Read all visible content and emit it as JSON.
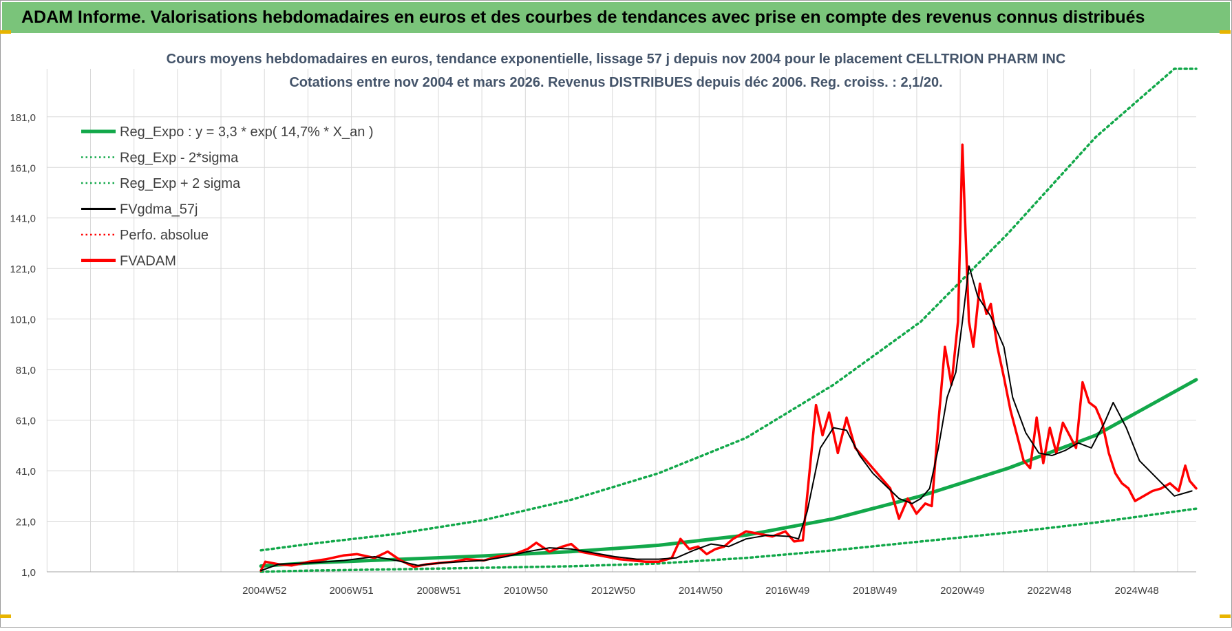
{
  "banner": {
    "title": "ADAM Informe. Valorisations hebdomadaires en euros et des courbes de tendances avec prise en compte des revenus connus distribués"
  },
  "colors": {
    "banner_bg": "#7ac47a",
    "trend": "#12a84a",
    "fvgdma": "#000000",
    "fvadam": "#ff0000",
    "title_text": "#44546a",
    "grid": "#d9d9d9"
  },
  "chart_data": {
    "type": "line",
    "title": "Cours moyens hebdomadaires en euros, tendance exponentielle, lissage 57 j depuis nov 2004  pour le placement CELLTRION PHARM INC",
    "subtitle": "Cotations entre nov 2004 et mars 2026. Revenus DISTRIBUES depuis déc 2006.  Reg. croiss. : 2,1/20.",
    "xlabel": "",
    "ylabel": "",
    "ylim": [
      1.0,
      200.0
    ],
    "xlim": [
      2000.0,
      2026.3
    ],
    "grid": true,
    "legend_position": "top-left",
    "y_ticks": [
      1.0,
      21.0,
      41.0,
      61.0,
      81.0,
      101.0,
      121.0,
      141.0,
      161.0,
      181.0
    ],
    "y_tick_labels": [
      "1,0",
      "21,0",
      "41,0",
      "61,0",
      "81,0",
      "101,0",
      "121,0",
      "141,0",
      "161,0",
      "181,0"
    ],
    "x_ticks": [
      2004.98,
      2006.97,
      2008.97,
      2010.96,
      2012.96,
      2014.96,
      2016.95,
      2018.95,
      2020.95,
      2022.94,
      2024.94
    ],
    "x_tick_labels": [
      "2004W52",
      "2006W51",
      "2008W51",
      "2010W50",
      "2012W50",
      "2014W50",
      "2016W49",
      "2018W49",
      "2020W49",
      "2022W48",
      "2024W48"
    ],
    "legend": [
      {
        "name": "Reg_Expo : y = 3,3 * exp( 14,7% *  X_an )",
        "style": "solid-thick",
        "color": "#12a84a"
      },
      {
        "name": "Reg_Exp - 2*sigma",
        "style": "dotted",
        "color": "#12a84a"
      },
      {
        "name": "Reg_Exp + 2 sigma",
        "style": "dotted",
        "color": "#12a84a"
      },
      {
        "name": "FVgdma_57j",
        "style": "solid",
        "color": "#000000"
      },
      {
        "name": "Perfo. absolue",
        "style": "dotted",
        "color": "#ff0000"
      },
      {
        "name": "FVADAM",
        "style": "solid-thick",
        "color": "#ff0000"
      }
    ],
    "series": [
      {
        "name": "Reg_Expo : y = 3,3 * exp( 14,7% *  X_an )",
        "x": [
          2004.9,
          2006,
          2008,
          2010,
          2012,
          2014,
          2016,
          2018,
          2020,
          2022,
          2024,
          2026.3
        ],
        "y": [
          3.3,
          4.5,
          5.9,
          7.3,
          9.0,
          11.5,
          15.5,
          22.0,
          31.0,
          42.0,
          55.0,
          77.0
        ]
      },
      {
        "name": "Reg_Exp - 2*sigma",
        "x": [
          2004.9,
          2006,
          2008,
          2010,
          2012,
          2014,
          2016,
          2018,
          2020,
          2022,
          2024,
          2026.3
        ],
        "y": [
          1.0,
          1.5,
          2.0,
          2.6,
          3.2,
          4.3,
          6.5,
          9.5,
          13.0,
          16.5,
          20.5,
          26.0
        ]
      },
      {
        "name": "Reg_Exp + 2 sigma",
        "x": [
          2004.9,
          2006,
          2008,
          2010,
          2012,
          2014,
          2016,
          2018,
          2020,
          2022,
          2024,
          2025.8,
          2026.3
        ],
        "y": [
          9.5,
          12.0,
          16.0,
          21.5,
          29.5,
          40.0,
          54.0,
          75.0,
          100.0,
          135.0,
          173.0,
          200.0,
          200.0
        ]
      },
      {
        "name": "FVgdma_57j",
        "x": [
          2004.9,
          2005.3,
          2006.0,
          2006.8,
          2007.5,
          2008.0,
          2008.5,
          2009.0,
          2009.5,
          2010.0,
          2010.5,
          2011.0,
          2011.5,
          2012.0,
          2012.5,
          2013.0,
          2013.5,
          2014.0,
          2014.4,
          2014.8,
          2015.2,
          2015.6,
          2016.0,
          2016.5,
          2017.0,
          2017.2,
          2017.4,
          2017.7,
          2018.0,
          2018.3,
          2018.6,
          2018.9,
          2019.2,
          2019.5,
          2019.8,
          2020.0,
          2020.2,
          2020.4,
          2020.6,
          2020.8,
          2020.95,
          2021.1,
          2021.3,
          2021.6,
          2021.9,
          2022.1,
          2022.4,
          2022.7,
          2023.0,
          2023.3,
          2023.6,
          2023.9,
          2024.2,
          2024.4,
          2024.7,
          2025.0,
          2025.4,
          2025.8,
          2026.2
        ],
        "y": [
          1.5,
          4.0,
          4.5,
          5.5,
          7.0,
          5.5,
          3.5,
          4.5,
          5.0,
          5.5,
          7.0,
          9.0,
          10.5,
          10.0,
          8.5,
          7.0,
          6.0,
          6.0,
          6.5,
          9.5,
          12.0,
          11.0,
          14.0,
          15.5,
          15.0,
          14.0,
          25.0,
          50.0,
          58.0,
          57.0,
          47.0,
          40.0,
          35.0,
          30.0,
          28.0,
          30.0,
          34.0,
          50.0,
          70.0,
          80.0,
          100.0,
          122.0,
          110.0,
          102.0,
          90.0,
          70.0,
          56.0,
          48.0,
          47.0,
          49.0,
          52.0,
          50.0,
          60.0,
          68.0,
          58.0,
          45.0,
          38.0,
          31.0,
          33.0
        ]
      },
      {
        "name": "FVADAM",
        "x": [
          2004.9,
          2005.0,
          2005.3,
          2005.6,
          2006.0,
          2006.4,
          2006.8,
          2007.1,
          2007.5,
          2007.8,
          2008.1,
          2008.4,
          2008.7,
          2009.0,
          2009.3,
          2009.6,
          2010.0,
          2010.3,
          2010.7,
          2011.0,
          2011.2,
          2011.5,
          2011.8,
          2012.0,
          2012.2,
          2012.5,
          2012.8,
          2013.1,
          2013.4,
          2013.7,
          2014.0,
          2014.3,
          2014.5,
          2014.7,
          2014.9,
          2015.1,
          2015.3,
          2015.5,
          2015.7,
          2016.0,
          2016.3,
          2016.6,
          2016.9,
          2017.1,
          2017.3,
          2017.45,
          2017.6,
          2017.75,
          2017.9,
          2018.1,
          2018.3,
          2018.5,
          2018.7,
          2018.9,
          2019.1,
          2019.3,
          2019.5,
          2019.7,
          2019.9,
          2020.1,
          2020.25,
          2020.4,
          2020.55,
          2020.7,
          2020.85,
          2020.95,
          2021.0,
          2021.1,
          2021.2,
          2021.35,
          2021.5,
          2021.6,
          2021.75,
          2021.9,
          2022.05,
          2022.2,
          2022.35,
          2022.5,
          2022.65,
          2022.8,
          2022.95,
          2023.1,
          2023.25,
          2023.4,
          2023.55,
          2023.7,
          2023.85,
          2024.0,
          2024.15,
          2024.3,
          2024.45,
          2024.6,
          2024.75,
          2024.9,
          2025.1,
          2025.3,
          2025.5,
          2025.7,
          2025.9,
          2026.05,
          2026.15,
          2026.3
        ],
        "y": [
          1.5,
          5.0,
          4.0,
          3.5,
          5.0,
          6.0,
          7.5,
          8.0,
          6.5,
          9.0,
          5.5,
          3.0,
          4.0,
          4.5,
          5.0,
          6.0,
          5.5,
          7.0,
          8.0,
          10.0,
          12.5,
          9.0,
          11.0,
          12.0,
          9.0,
          8.0,
          7.0,
          6.0,
          5.5,
          5.0,
          5.0,
          6.5,
          14.0,
          10.0,
          11.0,
          8.0,
          10.0,
          11.0,
          14.0,
          17.0,
          16.0,
          15.0,
          17.0,
          13.0,
          13.5,
          40.0,
          67.0,
          55.0,
          64.0,
          48.0,
          62.0,
          50.0,
          46.0,
          42.0,
          38.0,
          34.0,
          22.0,
          30.0,
          24.0,
          28.0,
          27.0,
          60.0,
          90.0,
          75.0,
          100.0,
          170.0,
          145.0,
          100.0,
          90.0,
          115.0,
          103.0,
          107.0,
          90.0,
          78.0,
          65.0,
          55.0,
          45.0,
          42.0,
          62.0,
          44.0,
          58.0,
          48.0,
          60.0,
          55.0,
          50.0,
          76.0,
          68.0,
          66.0,
          60.0,
          48.0,
          40.0,
          36.0,
          34.0,
          29.0,
          31.0,
          33.0,
          34.0,
          36.0,
          33.0,
          43.0,
          37.0,
          34.0
        ]
      }
    ]
  }
}
